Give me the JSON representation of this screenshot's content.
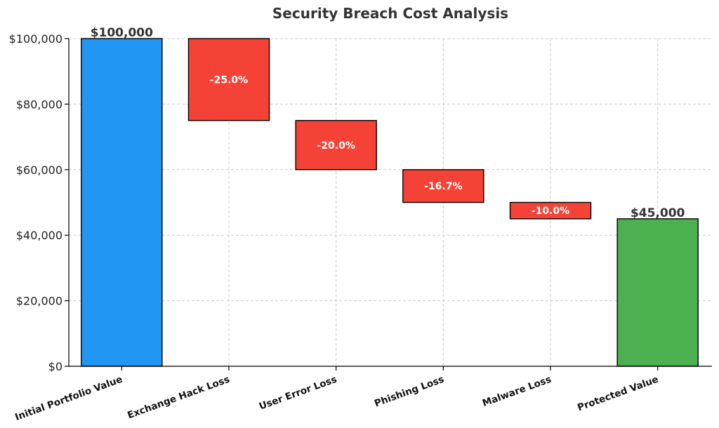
{
  "chart_data": {
    "type": "bar",
    "subtype": "waterfall",
    "title": "Security Breach Cost Analysis",
    "xlabel": "",
    "ylabel": "",
    "ylim": [
      0,
      100000
    ],
    "yticks": [
      0,
      20000,
      40000,
      60000,
      80000,
      100000
    ],
    "ytick_labels": [
      "$0",
      "$20,000",
      "$40,000",
      "$60,000",
      "$80,000",
      "$100,000"
    ],
    "grid": true,
    "categories": [
      "Initial Portfolio Value",
      "Exchange Hack Loss",
      "User Error Loss",
      "Phishing Loss",
      "Malware Loss",
      "Protected Value"
    ],
    "steps": [
      {
        "category": "Initial Portfolio Value",
        "kind": "total",
        "start": 0,
        "end": 100000,
        "label": "$100,000",
        "color": "#2196F3"
      },
      {
        "category": "Exchange Hack Loss",
        "kind": "decrease",
        "start": 100000,
        "end": 75000,
        "label": "-25.0%",
        "color": "#F44336"
      },
      {
        "category": "User Error Loss",
        "kind": "decrease",
        "start": 75000,
        "end": 60000,
        "label": "-20.0%",
        "color": "#F44336"
      },
      {
        "category": "Phishing Loss",
        "kind": "decrease",
        "start": 60000,
        "end": 50000,
        "label": "-16.7%",
        "color": "#F44336"
      },
      {
        "category": "Malware Loss",
        "kind": "decrease",
        "start": 50000,
        "end": 45000,
        "label": "-10.0%",
        "color": "#F44336"
      },
      {
        "category": "Protected Value",
        "kind": "total",
        "start": 0,
        "end": 45000,
        "label": "$45,000",
        "color": "#4CAF50"
      }
    ]
  }
}
